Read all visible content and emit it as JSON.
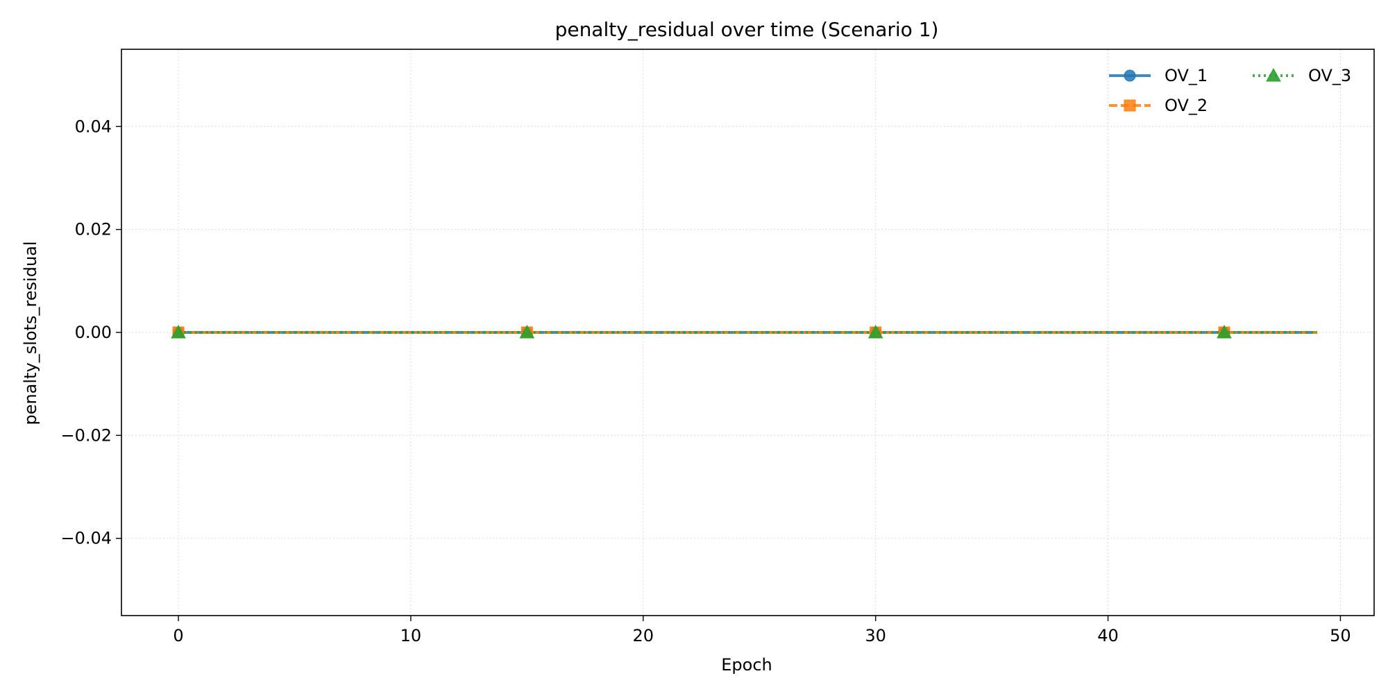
{
  "chart_data": {
    "type": "line",
    "title": "penalty_residual over time (Scenario 1)",
    "xlabel": "Epoch",
    "ylabel": "penalty_slots_residual",
    "xlim": [
      -2.45,
      51.45
    ],
    "ylim": [
      -0.055,
      0.055
    ],
    "xticks": [
      0,
      10,
      20,
      30,
      40,
      50
    ],
    "xtick_labels": [
      "0",
      "10",
      "20",
      "30",
      "40",
      "50"
    ],
    "yticks": [
      -0.04,
      -0.02,
      0.0,
      0.02,
      0.04
    ],
    "ytick_labels": [
      "−0.04",
      "−0.02",
      "0.00",
      "0.02",
      "0.04"
    ],
    "grid": true,
    "legend": {
      "placement": "top-right",
      "columns": 2
    },
    "series": [
      {
        "name": "OV_1",
        "color": "#1f77b4",
        "line_style": "solid",
        "marker": "circle",
        "x": [
          0,
          49
        ],
        "y": [
          0,
          0
        ],
        "marker_x": [
          0,
          15,
          30,
          45
        ]
      },
      {
        "name": "OV_2",
        "color": "#ff7f0e",
        "line_style": "dashed",
        "marker": "square",
        "x": [
          0,
          49
        ],
        "y": [
          0,
          0
        ],
        "marker_x": [
          0,
          15,
          30,
          45
        ]
      },
      {
        "name": "OV_3",
        "color": "#2ca02c",
        "line_style": "dotted",
        "marker": "triangle",
        "x": [
          0,
          49
        ],
        "y": [
          0,
          0
        ],
        "marker_x": [
          0,
          15,
          30,
          45
        ]
      }
    ]
  }
}
